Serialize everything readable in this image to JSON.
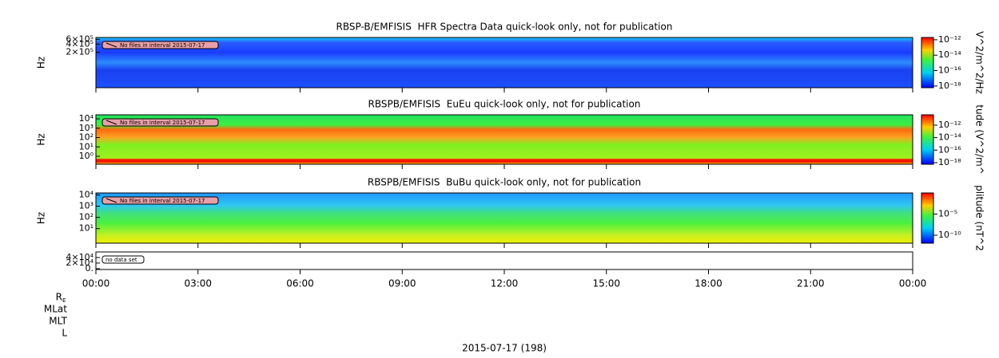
{
  "chart_data": [
    {
      "type": "spectrogram",
      "title": "RBSP-B/EMFISIS  HFR Spectra Data quick-look only, not for publication",
      "ylabel": "Hz",
      "log_y": true,
      "ylim": [
        10000,
        700000
      ],
      "yticks": [
        {
          "value": 600000,
          "label": "6×10⁵"
        },
        {
          "value": 400000,
          "label": "4×10⁵"
        },
        {
          "value": 200000,
          "label": "2×10⁵"
        }
      ],
      "annotation": "No files in interval 2015-07-17",
      "colorbar": {
        "label": "V^2/m^2/Hz",
        "clim": [
          6e-19,
          2e-12
        ],
        "ticks": [
          {
            "value": 1e-12,
            "label": "10⁻¹²"
          },
          {
            "value": 1e-14,
            "label": "10⁻¹⁴"
          },
          {
            "value": 1e-16,
            "label": "10⁻¹⁶"
          },
          {
            "value": 1e-18,
            "label": "10⁻¹⁸"
          }
        ]
      }
    },
    {
      "type": "spectrogram",
      "title": "RBSPB/EMFISIS  EuEu quick-look only, not for publication",
      "ylabel": "Hz",
      "log_y": true,
      "ylim": [
        0.14,
        27000
      ],
      "yticks": [
        {
          "value": 10000,
          "label": "10⁴"
        },
        {
          "value": 1000,
          "label": "10³"
        },
        {
          "value": 100,
          "label": "10²"
        },
        {
          "value": 10,
          "label": "10¹"
        },
        {
          "value": 1,
          "label": "10⁰"
        }
      ],
      "annotation": "No files in interval 2015-07-17",
      "colorbar": {
        "label": "tude (V^2/m^",
        "clim": [
          5.5e-19,
          4.5e-11
        ],
        "ticks": [
          {
            "value": 1e-12,
            "label": "10⁻¹²"
          },
          {
            "value": 1e-14,
            "label": "10⁻¹⁴"
          },
          {
            "value": 1e-16,
            "label": "10⁻¹⁶"
          },
          {
            "value": 1e-18,
            "label": "10⁻¹⁸"
          }
        ]
      }
    },
    {
      "type": "spectrogram",
      "title": "RBSPB/EMFISIS  BuBu quick-look only, not for publication",
      "ylabel": "Hz",
      "log_y": true,
      "ylim": [
        0.5,
        15000
      ],
      "yticks": [
        {
          "value": 10000,
          "label": "10⁴"
        },
        {
          "value": 1000,
          "label": "10³"
        },
        {
          "value": 100,
          "label": "10²"
        },
        {
          "value": 10,
          "label": "10¹"
        }
      ],
      "annotation": "No files in interval 2015-07-17",
      "colorbar": {
        "label": "plitude (nT^2",
        "clim": [
          1.3e-12,
          1
        ],
        "ticks": [
          {
            "value": 1e-05,
            "label": "10⁻⁵"
          },
          {
            "value": 1e-10,
            "label": "10⁻¹⁰"
          }
        ]
      }
    },
    {
      "type": "empty",
      "log_y": false,
      "ylim": [
        -3000,
        60000
      ],
      "yticks": [
        {
          "value": 40000,
          "label": "4×10⁴"
        },
        {
          "value": 20000,
          "label": "2×10⁴"
        },
        {
          "value": 0,
          "label": "0."
        }
      ],
      "annotation": "no data set"
    }
  ],
  "x_axis": {
    "xlim": [
      0,
      24
    ],
    "xticks": [
      {
        "value": 0,
        "label": "00:00"
      },
      {
        "value": 3,
        "label": "03:00"
      },
      {
        "value": 6,
        "label": "06:00"
      },
      {
        "value": 9,
        "label": "09:00"
      },
      {
        "value": 12,
        "label": "12:00"
      },
      {
        "value": 15,
        "label": "15:00"
      },
      {
        "value": 18,
        "label": "18:00"
      },
      {
        "value": 21,
        "label": "21:00"
      },
      {
        "value": 24,
        "label": "00:00"
      }
    ]
  },
  "ephemeris_labels": [
    {
      "text": "R",
      "subscript": "E"
    },
    {
      "text": "MLat"
    },
    {
      "text": "MLT"
    },
    {
      "text": "L"
    }
  ],
  "date_label": "2015-07-17 (198)"
}
